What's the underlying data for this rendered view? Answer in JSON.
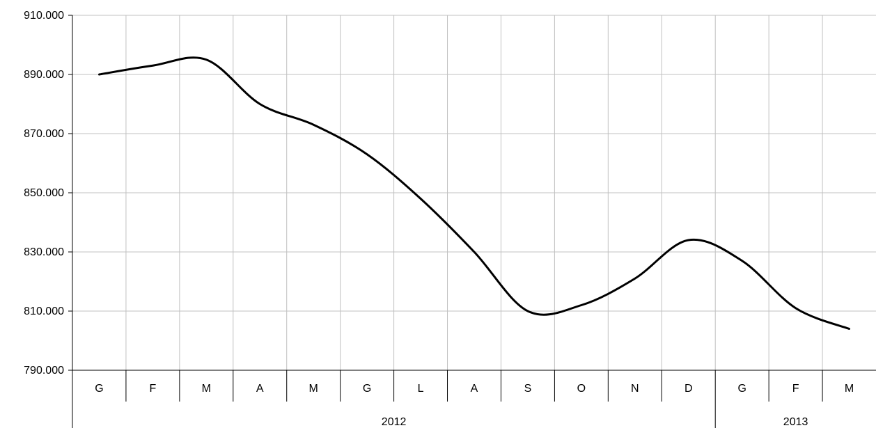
{
  "chart_data": {
    "type": "line",
    "title": "",
    "xlabel": "",
    "ylabel": "",
    "categories": [
      "G",
      "F",
      "M",
      "A",
      "M",
      "G",
      "L",
      "A",
      "S",
      "O",
      "N",
      "D",
      "G",
      "F",
      "M"
    ],
    "groups": [
      {
        "label": "2012",
        "span": 12
      },
      {
        "label": "2013",
        "span": 3
      }
    ],
    "values": [
      890000,
      893000,
      895000,
      880000,
      873000,
      863000,
      848000,
      830000,
      810000,
      812000,
      821000,
      834000,
      827000,
      811000,
      804000
    ],
    "yticks": [
      "790.000",
      "810.000",
      "830.000",
      "850.000",
      "870.000",
      "890.000",
      "910.000"
    ],
    "ylim": [
      790000,
      910000
    ],
    "grid": true,
    "legend": "none",
    "line_color": "#000000",
    "grid_color": "#c0c0c0"
  }
}
